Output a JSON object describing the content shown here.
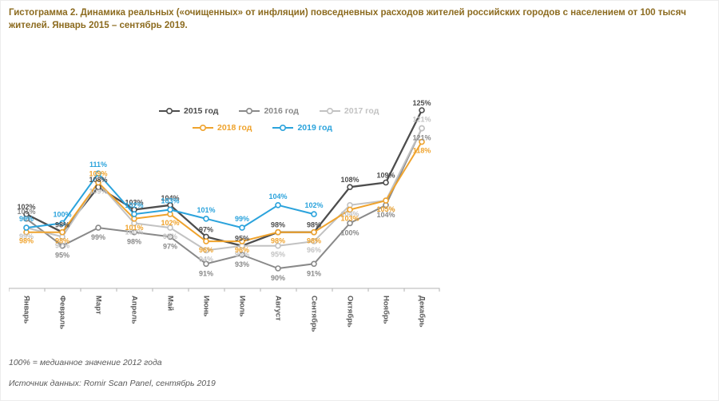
{
  "page": {
    "title": "Гистограмма 2. Динамика реальных («очищенных» от инфляции) повседневных расходов жителей российских городов с населением от 100 тысяч жителей. Январь 2015 – сентябрь 2019.",
    "title_color": "#8c6b1f"
  },
  "chart_data": {
    "type": "line",
    "title": "Динамика реальных повседневных расходов",
    "unit": "%",
    "grid": false,
    "legend_position": "top-center",
    "ylim": [
      90,
      125
    ],
    "categories": [
      "Январь",
      "Февраль",
      "Март",
      "Апрель",
      "Май",
      "Июнь",
      "Июль",
      "Август",
      "Сентябрь",
      "Октябрь",
      "Ноябрь",
      "Декабрь"
    ],
    "series": [
      {
        "name": "2015 год",
        "color": "#4d4d4d",
        "values": [
          102,
          98,
          108,
          103,
          104,
          97,
          95,
          98,
          98,
          108,
          109,
          125
        ]
      },
      {
        "name": "2016 год",
        "color": "#898989",
        "values": [
          101,
          95,
          99,
          98,
          97,
          91,
          93,
          90,
          91,
          100,
          104,
          121
        ]
      },
      {
        "name": "2017 год",
        "color": "#c2c2c2",
        "values": [
          99,
          97,
          109,
          100,
          99,
          94,
          95,
          95,
          96,
          104,
          105,
          121
        ]
      },
      {
        "name": "2018 год",
        "color": "#efa32d",
        "values": [
          98,
          98,
          109,
          101,
          102,
          96,
          96,
          98,
          98,
          103,
          105,
          118
        ]
      },
      {
        "name": "2019 год",
        "color": "#2ba3dc",
        "values": [
          99,
          100,
          111,
          102,
          103,
          101,
          99,
          104,
          102
        ]
      }
    ]
  },
  "axis": {
    "label_color": "#595959",
    "line_color": "#b3b3b3"
  },
  "footnotes": {
    "median_note": "100% = медианное значение 2012 года",
    "source_note": "Источник данных: Romir Scan Panel, сентябрь 2019"
  }
}
